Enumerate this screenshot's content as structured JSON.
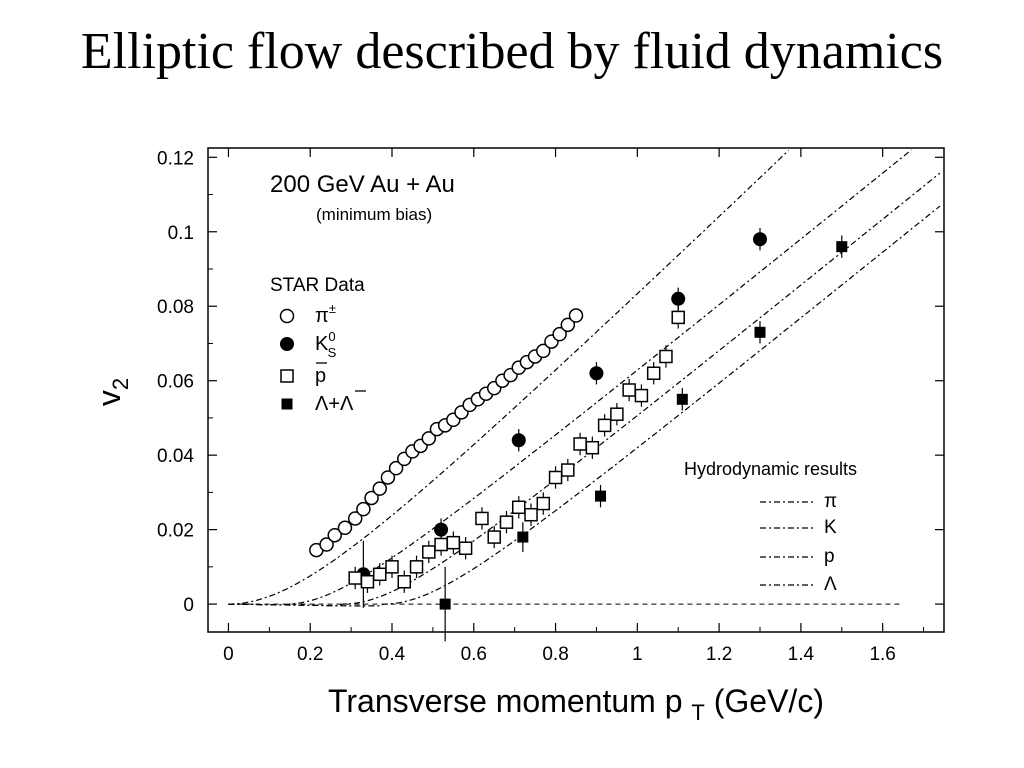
{
  "slide": {
    "title": "Elliptic flow described by fluid dynamics"
  },
  "chart_data": {
    "type": "scatter",
    "title": "200 GeV Au + Au",
    "subtitle": "(minimum bias)",
    "xlabel": "Transverse momentum p",
    "xlabel_sub": "T",
    "xlabel_unit": "(GeV/c)",
    "ylabel": "v",
    "ylabel_sub": "2",
    "xlim": [
      -0.05,
      1.75
    ],
    "ylim": [
      -0.0075,
      0.1225
    ],
    "x_ticks": [
      0,
      0.2,
      0.4,
      0.6,
      0.8,
      1,
      1.2,
      1.4,
      1.6
    ],
    "x_tick_labels": [
      "0",
      "0.2",
      "0.4",
      "0.6",
      "0.8",
      "1",
      "1.2",
      "1.4",
      "1.6"
    ],
    "y_ticks": [
      0,
      0.02,
      0.04,
      0.06,
      0.08,
      0.1,
      0.12
    ],
    "y_tick_labels": [
      "0",
      "0.02",
      "0.04",
      "0.06",
      "0.08",
      "0.1",
      "0.12"
    ],
    "grid": false,
    "legend_data_title": "STAR Data",
    "legend_data_placement": "upper-left",
    "legend_hydro_title": "Hydrodynamic results",
    "legend_hydro_placement": "lower-right",
    "series": [
      {
        "name": "π±",
        "label_main": "π",
        "label_sup": "±",
        "marker": "open-circle",
        "x": [
          0.215,
          0.24,
          0.26,
          0.285,
          0.31,
          0.33,
          0.35,
          0.37,
          0.39,
          0.41,
          0.43,
          0.45,
          0.47,
          0.49,
          0.51,
          0.53,
          0.55,
          0.57,
          0.59,
          0.61,
          0.63,
          0.65,
          0.67,
          0.69,
          0.71,
          0.73,
          0.75,
          0.77,
          0.79,
          0.81,
          0.83,
          0.85
        ],
        "y": [
          0.0145,
          0.016,
          0.0185,
          0.0205,
          0.023,
          0.0255,
          0.0285,
          0.031,
          0.034,
          0.0365,
          0.039,
          0.041,
          0.0425,
          0.0445,
          0.047,
          0.048,
          0.0495,
          0.0515,
          0.0535,
          0.055,
          0.0565,
          0.058,
          0.06,
          0.0615,
          0.0635,
          0.065,
          0.0665,
          0.068,
          0.0705,
          0.0725,
          0.075,
          0.0775
        ]
      },
      {
        "name": "K0S",
        "label_main": "K",
        "label_sup": "0",
        "label_sub": "S",
        "marker": "filled-circle",
        "x": [
          0.33,
          0.52,
          0.71,
          0.9,
          1.1,
          1.3
        ],
        "y": [
          0.008,
          0.02,
          0.044,
          0.062,
          0.082,
          0.098
        ],
        "yerr": [
          0.009,
          0.003,
          0.003,
          0.003,
          0.003,
          0.003
        ]
      },
      {
        "name": "p̄",
        "label_main": "p",
        "marker": "open-square",
        "x": [
          0.31,
          0.34,
          0.37,
          0.4,
          0.43,
          0.46,
          0.49,
          0.52,
          0.55,
          0.58,
          0.62,
          0.65,
          0.68,
          0.71,
          0.74,
          0.77,
          0.8,
          0.83,
          0.86,
          0.89,
          0.92,
          0.95,
          0.98,
          1.01,
          1.04,
          1.07,
          1.1
        ],
        "y": [
          0.007,
          0.006,
          0.008,
          0.01,
          0.006,
          0.01,
          0.014,
          0.016,
          0.0165,
          0.015,
          0.023,
          0.018,
          0.022,
          0.026,
          0.024,
          0.027,
          0.034,
          0.036,
          0.043,
          0.042,
          0.048,
          0.051,
          0.0575,
          0.056,
          0.062,
          0.0665,
          0.077
        ],
        "yerr": [
          0.003,
          0.003,
          0.003,
          0.003,
          0.003,
          0.003,
          0.003,
          0.003,
          0.003,
          0.003,
          0.003,
          0.003,
          0.003,
          0.003,
          0.003,
          0.003,
          0.003,
          0.003,
          0.003,
          0.003,
          0.003,
          0.003,
          0.003,
          0.003,
          0.003,
          0.003,
          0.003
        ]
      },
      {
        "name": "Λ+Λ̄",
        "label_main": "Λ+Λ",
        "marker": "filled-square",
        "x": [
          0.53,
          0.72,
          0.91,
          1.11,
          1.3,
          1.5
        ],
        "y": [
          0.0,
          0.018,
          0.029,
          0.055,
          0.073,
          0.096
        ],
        "yerr": [
          0.01,
          0.004,
          0.003,
          0.003,
          0.003,
          0.003
        ]
      }
    ],
    "hydro_curves": [
      {
        "name": "π"
      },
      {
        "name": "K"
      },
      {
        "name": "p"
      },
      {
        "name": "Λ"
      }
    ]
  }
}
